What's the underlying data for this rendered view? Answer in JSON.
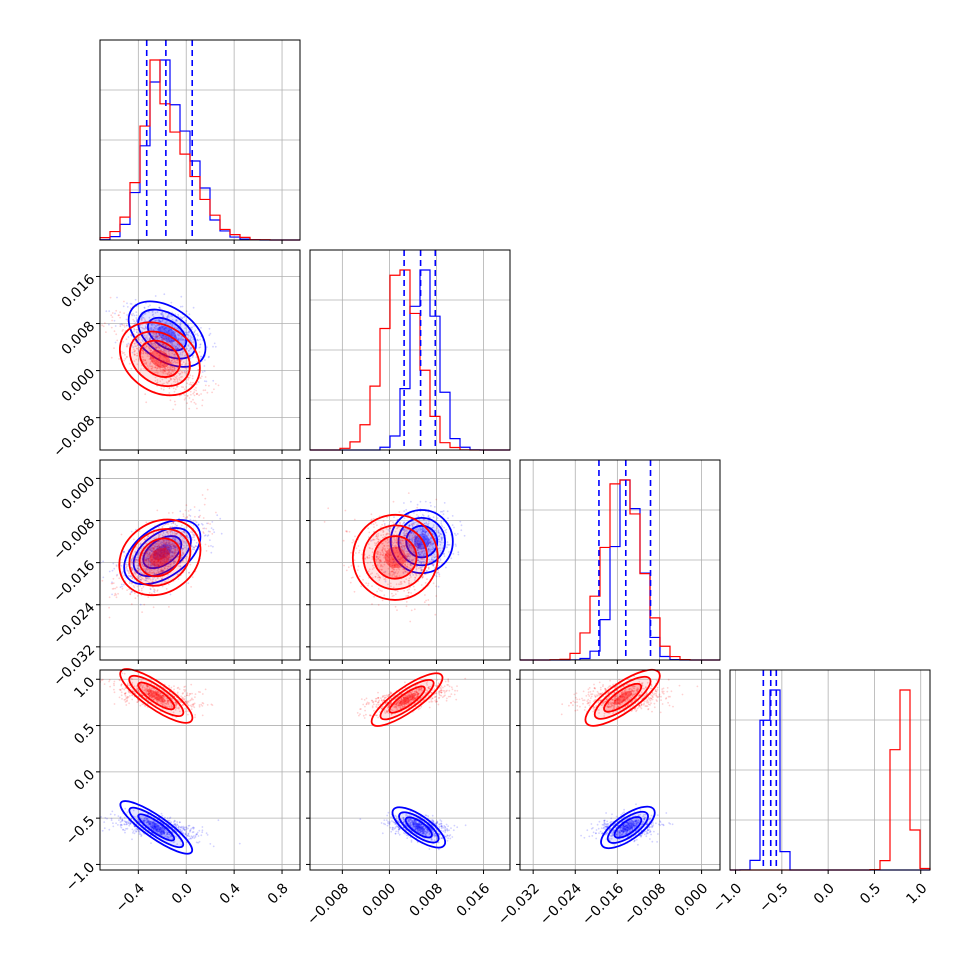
{
  "chart_data": {
    "type": "corner",
    "series": [
      {
        "name": "",
        "color": "#0000ff",
        "x1": {
          "mean": -0.16,
          "sd": 0.15,
          "skew": 0.4,
          "quantiles": [
            -0.33,
            -0.17,
            0.05
          ]
        },
        "x2": {
          "mean": 0.006,
          "sd": 0.0022,
          "quantiles": [
            0.0025,
            0.0053,
            0.0078
          ]
        },
        "x3": {
          "mean": -0.014,
          "sd": 0.0025,
          "quantiles": [
            -0.0195,
            -0.0144,
            -0.0097
          ]
        },
        "x4": {
          "mean": -0.62,
          "sd": 0.06,
          "quantiles": [
            -0.7,
            -0.62,
            -0.56
          ]
        },
        "centers": {
          "x1_x2": [
            -0.16,
            0.0062
          ],
          "x1_x3": [
            -0.2,
            -0.014
          ],
          "x1_x4": [
            -0.25,
            -0.6
          ],
          "x2_x3": [
            0.0055,
            -0.012
          ],
          "x2_x4": [
            0.005,
            -0.6
          ],
          "x3_x4": [
            -0.014,
            -0.6
          ]
        }
      },
      {
        "name": "",
        "color": "#ff0000",
        "x1": {
          "mean": -0.2,
          "sd": 0.15,
          "skew": 0.6
        },
        "x2": {
          "mean": 0.002,
          "sd": 0.003
        },
        "x3": {
          "mean": -0.015,
          "sd": 0.0035
        },
        "x4": {
          "mean": 0.8,
          "sd": 0.07
        },
        "centers": {
          "x1_x2": [
            -0.22,
            0.002
          ],
          "x1_x3": [
            -0.22,
            -0.015
          ],
          "x1_x4": [
            -0.25,
            0.82
          ],
          "x2_x3": [
            0.001,
            -0.015
          ],
          "x2_x4": [
            0.003,
            0.78
          ],
          "x3_x4": [
            -0.015,
            0.8
          ]
        }
      }
    ],
    "params": [
      {
        "range": [
          -0.72,
          0.95
        ],
        "ticks": [
          "−0.4",
          "0.0",
          "0.4",
          "0.8"
        ],
        "tick_values": [
          -0.4,
          0.0,
          0.4,
          0.8
        ]
      },
      {
        "range": [
          -0.0135,
          0.0205
        ],
        "ticks": [
          "−0.008",
          "0.000",
          "0.008",
          "0.016"
        ],
        "tick_values": [
          -0.008,
          0.0,
          0.008,
          0.016
        ]
      },
      {
        "range": [
          -0.0345,
          0.0035
        ],
        "ticks": [
          "−0.032",
          "−0.024",
          "−0.016",
          "−0.008",
          "0.000"
        ],
        "tick_values": [
          -0.032,
          -0.024,
          -0.016,
          -0.008,
          0.0
        ]
      },
      {
        "range": [
          -1.06,
          1.1
        ],
        "ticks": [
          "−1.0",
          "−0.5",
          "0.0",
          "0.5",
          "1.0"
        ],
        "tick_values": [
          -1.0,
          -0.5,
          0.0,
          0.5,
          1.0
        ]
      }
    ],
    "grid": true,
    "title": "",
    "xlabel": "",
    "ylabel": ""
  }
}
